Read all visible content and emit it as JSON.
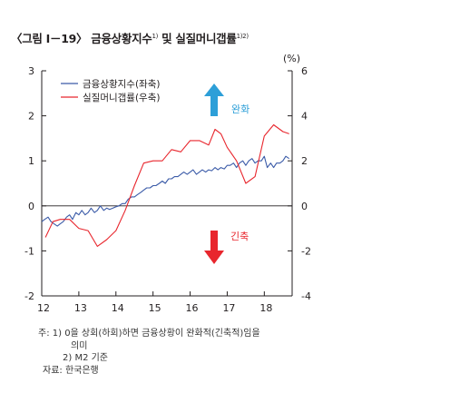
{
  "header": {
    "prefix": "〈그림 Ⅰ－19〉",
    "main": "금융상황지수",
    "sup1": "1)",
    "mid": " 및 실질머니갭률",
    "sup2": "1)2)"
  },
  "notes": {
    "line1": "주: 1) 0을  상회(하회)하면  금융상황이  완화적(긴축적)임을",
    "line1b": "의미",
    "line2": "2) M2 기준",
    "line3": "자료: 한국은행"
  },
  "colors": {
    "fci": "#3b5ba8",
    "gap": "#e8262d",
    "ease_arrow": "#2d9fd8",
    "tight_arrow": "#e8262d",
    "axis": "#231f20"
  },
  "chart_data": {
    "type": "line",
    "title": "금융상황지수 및 실질머니갭률",
    "y_left": {
      "ticks": [
        3,
        2,
        1,
        0,
        -1,
        -2
      ],
      "ylim": [
        -2,
        3
      ]
    },
    "y_right": {
      "unit": "(%)",
      "ticks": [
        6,
        4,
        2,
        0,
        -2,
        -4
      ],
      "ylim": [
        -4,
        6
      ]
    },
    "x_ticks": [
      "12",
      "13",
      "14",
      "15",
      "16",
      "17",
      "18"
    ],
    "x_range": [
      2012.0,
      2018.75
    ],
    "legend": {
      "position": "top-left",
      "items": [
        "금융상황지수(좌축)",
        "실질머니갭률(우축)"
      ]
    },
    "annotations": {
      "ease": "완화",
      "tight": "긴축"
    },
    "series": [
      {
        "name": "금융상황지수(좌축)",
        "axis": "left",
        "x": [
          2012.0,
          2012.08,
          2012.17,
          2012.25,
          2012.33,
          2012.42,
          2012.5,
          2012.58,
          2012.67,
          2012.75,
          2012.83,
          2012.92,
          2013.0,
          2013.08,
          2013.17,
          2013.25,
          2013.33,
          2013.42,
          2013.5,
          2013.58,
          2013.67,
          2013.75,
          2013.83,
          2013.92,
          2014.0,
          2014.08,
          2014.17,
          2014.25,
          2014.33,
          2014.42,
          2014.5,
          2014.58,
          2014.67,
          2014.75,
          2014.83,
          2014.92,
          2015.0,
          2015.08,
          2015.17,
          2015.25,
          2015.33,
          2015.42,
          2015.5,
          2015.58,
          2015.67,
          2015.75,
          2015.83,
          2015.92,
          2016.0,
          2016.08,
          2016.17,
          2016.25,
          2016.33,
          2016.42,
          2016.5,
          2016.58,
          2016.67,
          2016.75,
          2016.83,
          2016.92,
          2017.0,
          2017.08,
          2017.17,
          2017.25,
          2017.33,
          2017.42,
          2017.5,
          2017.58,
          2017.67,
          2017.75,
          2017.83,
          2017.92,
          2018.0,
          2018.08,
          2018.17,
          2018.25,
          2018.33,
          2018.42,
          2018.5,
          2018.58,
          2018.67
        ],
        "values": [
          -0.35,
          -0.3,
          -0.25,
          -0.35,
          -0.4,
          -0.45,
          -0.4,
          -0.35,
          -0.25,
          -0.2,
          -0.3,
          -0.15,
          -0.2,
          -0.1,
          -0.2,
          -0.15,
          -0.05,
          -0.15,
          -0.1,
          0.0,
          -0.1,
          -0.05,
          -0.08,
          -0.05,
          -0.02,
          0.0,
          0.05,
          0.05,
          0.15,
          0.2,
          0.2,
          0.25,
          0.3,
          0.35,
          0.4,
          0.4,
          0.45,
          0.45,
          0.5,
          0.55,
          0.5,
          0.6,
          0.6,
          0.65,
          0.65,
          0.7,
          0.75,
          0.7,
          0.75,
          0.8,
          0.7,
          0.75,
          0.8,
          0.75,
          0.8,
          0.78,
          0.85,
          0.8,
          0.85,
          0.82,
          0.9,
          0.9,
          0.95,
          0.85,
          0.95,
          1.0,
          0.9,
          1.0,
          1.05,
          0.95,
          1.0,
          1.0,
          1.1,
          0.85,
          0.95,
          0.85,
          0.95,
          0.95,
          1.0,
          1.1,
          1.05
        ]
      },
      {
        "name": "실질머니갭률(우축)",
        "axis": "right",
        "x": [
          2012.1,
          2012.3,
          2012.5,
          2012.75,
          2013.0,
          2013.25,
          2013.5,
          2013.75,
          2014.0,
          2014.25,
          2014.5,
          2014.75,
          2015.0,
          2015.25,
          2015.5,
          2015.75,
          2016.0,
          2016.25,
          2016.5,
          2016.67,
          2016.83,
          2017.0,
          2017.25,
          2017.5,
          2017.75,
          2018.0,
          2018.25,
          2018.5,
          2018.67
        ],
        "values": [
          -1.4,
          -0.7,
          -0.6,
          -0.6,
          -1.0,
          -1.1,
          -1.8,
          -1.5,
          -1.1,
          -0.2,
          0.9,
          1.9,
          2.0,
          2.0,
          2.5,
          2.4,
          2.9,
          2.9,
          2.7,
          3.4,
          3.2,
          2.6,
          2.0,
          1.0,
          1.3,
          3.1,
          3.6,
          3.3,
          3.2
        ]
      }
    ]
  }
}
